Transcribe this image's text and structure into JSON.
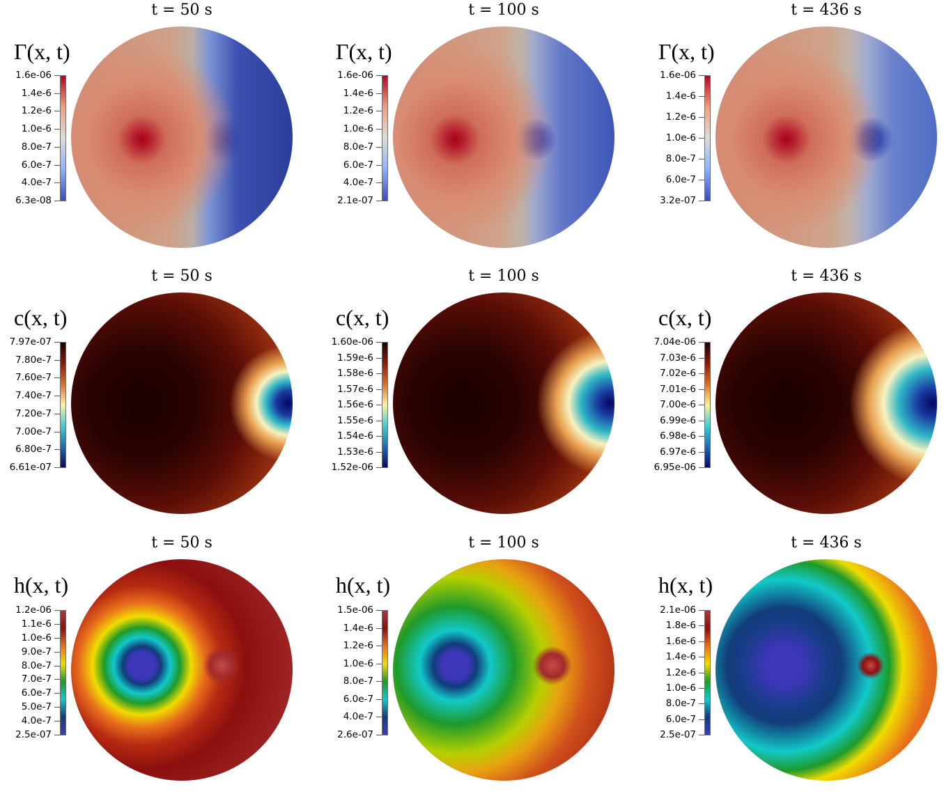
{
  "panels": [
    {
      "title": "t = 50 s",
      "field": "Γ(x, t)",
      "sym": "Γ",
      "colormap": [
        "#b40426",
        "#f29f7c",
        "#dddcdc",
        "#8db0fe",
        "#3b4cc0"
      ],
      "ticks": [
        "1.6e-06",
        "1.4e-6",
        "1.2e-6",
        "1.0e-6",
        "8.0e-7",
        "6.0e-7",
        "4.0e-7",
        "6.3e-08"
      ]
    },
    {
      "title": "t = 100 s",
      "field": "Γ(x, t)",
      "sym": "Γ",
      "colormap": [
        "#b40426",
        "#f29f7c",
        "#dddcdc",
        "#8db0fe",
        "#3b4cc0"
      ],
      "ticks": [
        "1.6e-06",
        "1.4e-6",
        "1.2e-6",
        "1.0e-6",
        "8.0e-7",
        "6.0e-7",
        "4.0e-7",
        "2.1e-07"
      ]
    },
    {
      "title": "t = 436 s",
      "field": "Γ(x, t)",
      "sym": "Γ",
      "colormap": [
        "#b40426",
        "#f29f7c",
        "#dddcdc",
        "#8db0fe",
        "#3b4cc0"
      ],
      "ticks": [
        "1.6e-06",
        "1.4e-6",
        "1.2e-6",
        "1.0e-6",
        "8.0e-7",
        "6.0e-7",
        "3.2e-07"
      ]
    },
    {
      "title": "t = 50 s",
      "field": "c(x, t)",
      "sym": "c",
      "colormap": [
        "#1a0000",
        "#8b1a0a",
        "#d8702a",
        "#fff2a0",
        "#3fcfd0",
        "#1c6db3",
        "#080864"
      ],
      "ticks": [
        "7.97e-07",
        "7.80e-7",
        "7.60e-7",
        "7.40e-7",
        "7.20e-7",
        "7.00e-7",
        "6.80e-7",
        "6.61e-07"
      ]
    },
    {
      "title": "t = 100 s",
      "field": "c(x, t)",
      "sym": "c",
      "colormap": [
        "#1a0000",
        "#8b1a0a",
        "#d8702a",
        "#fff2a0",
        "#3fcfd0",
        "#1c6db3",
        "#080864"
      ],
      "ticks": [
        "1.60e-06",
        "1.59e-6",
        "1.58e-6",
        "1.57e-6",
        "1.56e-6",
        "1.55e-6",
        "1.54e-6",
        "1.53e-6",
        "1.52e-06"
      ]
    },
    {
      "title": "t = 436 s",
      "field": "c(x, t)",
      "sym": "c",
      "colormap": [
        "#1a0000",
        "#8b1a0a",
        "#d8702a",
        "#fff2a0",
        "#3fcfd0",
        "#1c6db3",
        "#080864"
      ],
      "ticks": [
        "7.04e-06",
        "7.03e-6",
        "7.02e-6",
        "7.01e-6",
        "7.00e-6",
        "6.99e-6",
        "6.98e-6",
        "6.97e-6",
        "6.95e-06"
      ]
    },
    {
      "title": "t = 50 s",
      "field": "h(x, t)",
      "sym": "h",
      "colormap": [
        "#a63a3a",
        "#8b0f0f",
        "#e8701c",
        "#f0dc00",
        "#1e9a2a",
        "#12c9c9",
        "#123c7a",
        "#3d3db8"
      ],
      "ticks": [
        "1.2e-06",
        "1.1e-6",
        "1.0e-6",
        "9.0e-7",
        "8.0e-7",
        "7.0e-7",
        "6.0e-7",
        "5.0e-7",
        "4.0e-7",
        "2.5e-07"
      ]
    },
    {
      "title": "t = 100 s",
      "field": "h(x, t)",
      "sym": "h",
      "colormap": [
        "#a63a3a",
        "#8b0f0f",
        "#e8701c",
        "#f0dc00",
        "#1e9a2a",
        "#12c9c9",
        "#123c7a",
        "#3d3db8"
      ],
      "ticks": [
        "1.5e-06",
        "1.4e-6",
        "1.2e-6",
        "1.0e-6",
        "8.0e-7",
        "6.0e-7",
        "4.0e-7",
        "2.6e-07"
      ]
    },
    {
      "title": "t = 436 s",
      "field": "h(x, t)",
      "sym": "h",
      "colormap": [
        "#a63a3a",
        "#8b0f0f",
        "#e8701c",
        "#f0dc00",
        "#1e9a2a",
        "#12c9c9",
        "#123c7a",
        "#3d3db8"
      ],
      "ticks": [
        "2.1e-06",
        "1.8e-6",
        "1.6e-6",
        "1.4e-6",
        "1.2e-6",
        "1.0e-6",
        "8.0e-7",
        "6.0e-7",
        "2.5e-07"
      ]
    }
  ]
}
